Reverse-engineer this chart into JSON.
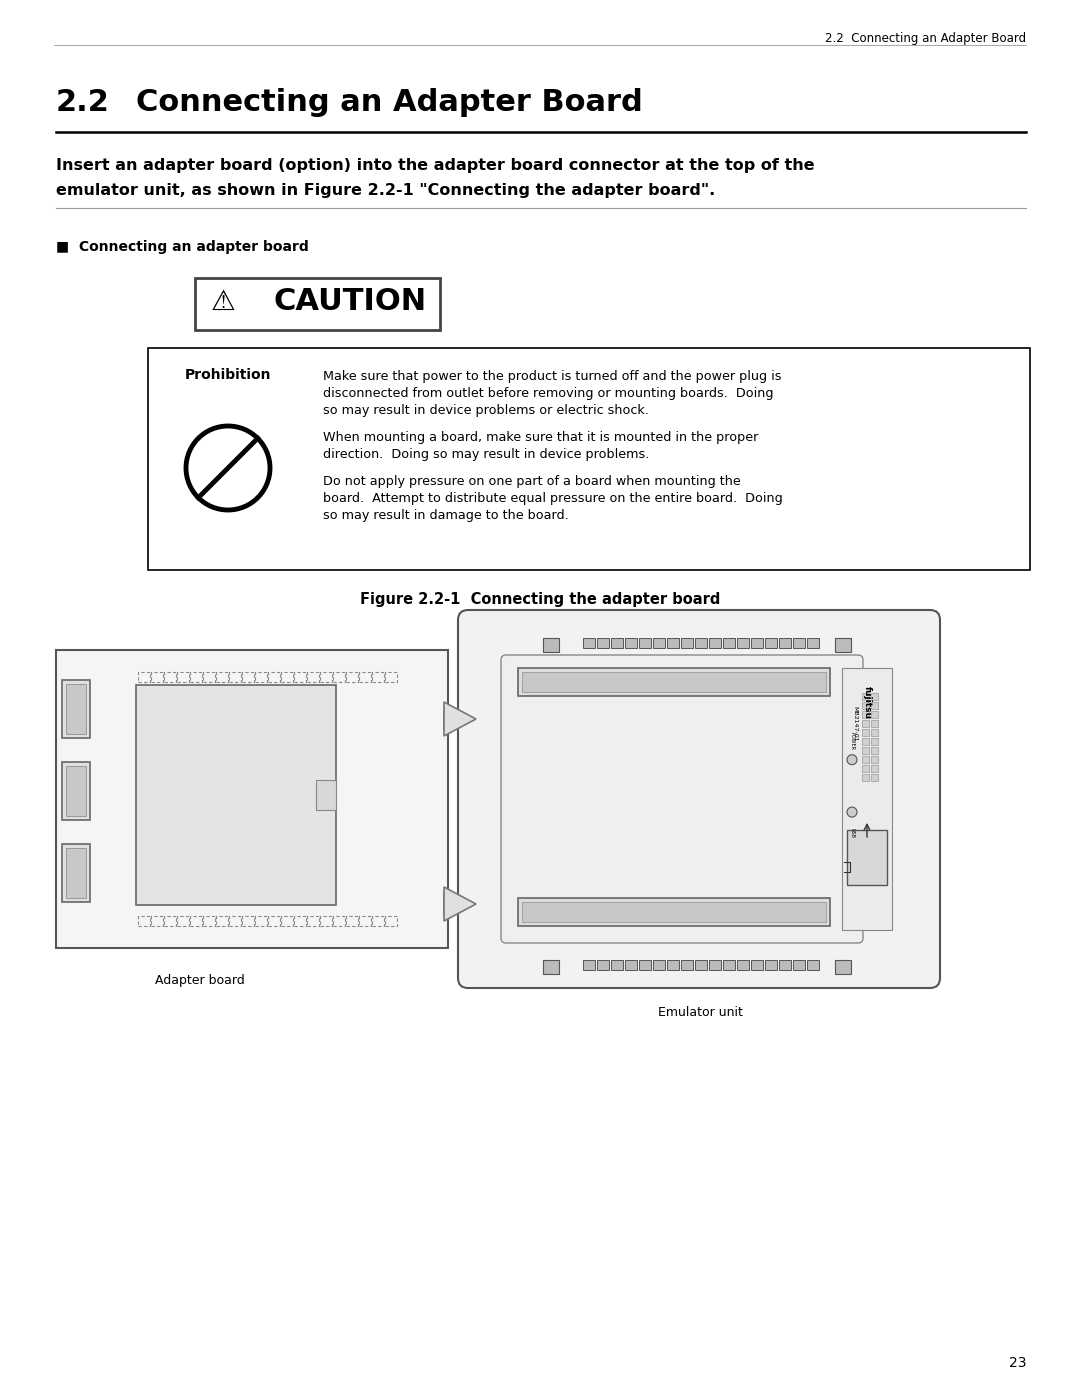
{
  "page_title_header": "2.2  Connecting an Adapter Board",
  "section_number": "2.2",
  "section_title": "Connecting an Adapter Board",
  "intro_text_line1": "Insert an adapter board (option) into the adapter board connector at the top of the",
  "intro_text_line2": "emulator unit, as shown in Figure 2.2-1 \"Connecting the adapter board\".",
  "subsection_label": "■  Connecting an adapter board",
  "prohibition_label": "Prohibition",
  "prohibition_text1": "Make sure that power to the product is turned off and the power plug is",
  "prohibition_text2": "disconnected from outlet before removing or mounting boards.  Doing",
  "prohibition_text3": "so may result in device problems or electric shock.",
  "prohibition_text4": "When mounting a board, make sure that it is mounted in the proper",
  "prohibition_text5": "direction.  Doing so may result in device problems.",
  "prohibition_text6": "Do not apply pressure on one part of a board when mounting the",
  "prohibition_text7": "board.  Attempt to distribute equal pressure on the entire board.  Doing",
  "prohibition_text8": "so may result in damage to the board.",
  "figure_caption": "Figure 2.2-1  Connecting the adapter board",
  "adapter_board_label": "Adapter board",
  "emulator_unit_label": "Emulator unit",
  "page_number": "23",
  "bg_color": "#ffffff",
  "text_color": "#000000",
  "dark_gray": "#333333",
  "mid_gray": "#888888",
  "light_gray": "#cccccc",
  "lighter_gray": "#e8e8e8",
  "caution_border": "#222222"
}
